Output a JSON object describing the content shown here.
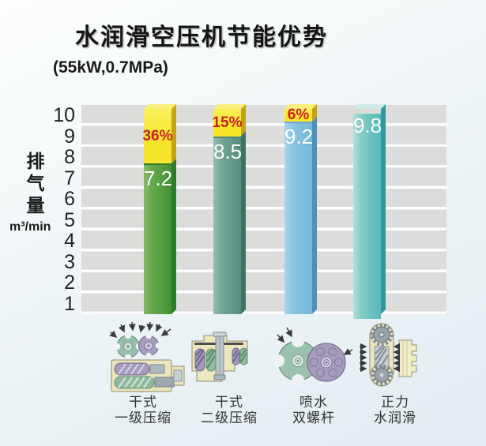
{
  "title": "水润滑空压机节能优势",
  "subtitle": "(55kW,0.7MPa)",
  "y_axis": {
    "label": "排气量",
    "unit": "m³/min"
  },
  "chart_data": {
    "type": "bar",
    "title": "水润滑空压机节能优势",
    "subtitle": "(55kW,0.7MPa)",
    "ylabel": "排气量 m³/min",
    "ylim": [
      0,
      10
    ],
    "yticks": [
      1,
      2,
      3,
      4,
      5,
      6,
      7,
      8,
      9,
      10
    ],
    "grid": "horizontal-bands",
    "legend": "none",
    "categories": [
      "干式一级压缩",
      "干式二级压缩",
      "喷水双螺杆",
      "正力水润滑"
    ],
    "values": [
      7.2,
      8.5,
      9.2,
      9.8
    ],
    "value_labels": [
      "7.2",
      "8.5",
      "9.2",
      "9.8"
    ],
    "energy_loss_pct": [
      "36%",
      "15%",
      "6%",
      null
    ],
    "cap_top_value": 9.8,
    "pct_text_color": "#c92323",
    "value_text_color": "#ffffff",
    "grid_band_color": "#dcdcda",
    "cap_style": {
      "front": "#f7e72b",
      "front_light": "#faef5c",
      "side": "#c3a318",
      "top": "#fbf07d"
    },
    "bar_styles": [
      {
        "front_light": "#86bb65",
        "front_mid": "#65a84c",
        "front_dark": "#449136",
        "side": "#2c7c2b",
        "top": "#fbf07d",
        "boundary": "#2f7d2a"
      },
      {
        "front_light": "#93bfb1",
        "front_mid": "#74a595",
        "front_dark": "#578e80",
        "side": "#3d7265",
        "top": "#fbf07d",
        "boundary": "#4a8274"
      },
      {
        "front_light": "#aad5ec",
        "front_mid": "#8cc4e1",
        "front_dark": "#74b7da",
        "side": "#4f90b8",
        "top": "#fbf07d",
        "boundary": "#68a9cc"
      },
      {
        "front_light": "#b2e0da",
        "front_mid": "#83cbc6",
        "front_dark": "#57b9b7",
        "side": "#2f98a2",
        "top": "#cdebe7",
        "boundary": "#57b9b7"
      }
    ]
  },
  "footer": {
    "categories": [
      {
        "line1": "干式",
        "line2": "一级压缩",
        "icon": "dry-single-stage-icon"
      },
      {
        "line1": "干式",
        "line2": "二级压缩",
        "icon": "dry-two-stage-icon"
      },
      {
        "line1": "喷水",
        "line2": "双螺杆",
        "icon": "water-injected-twin-screw-icon"
      },
      {
        "line1": "正力",
        "line2": "水润滑",
        "icon": "zhengli-water-lubricated-icon"
      }
    ]
  }
}
